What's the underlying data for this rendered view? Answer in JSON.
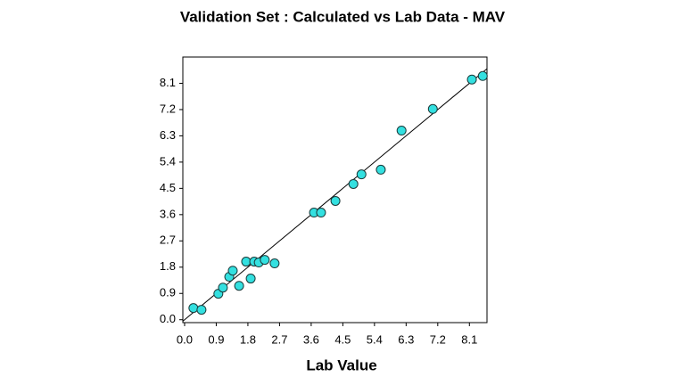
{
  "chart_data": {
    "type": "scatter",
    "title": "Validation Set : Calculated vs Lab Data - MAV",
    "x_label": "Lab Value",
    "title_color": "#1f1f99",
    "x_label_color": "#8b1a1a",
    "color": "#33e0e0",
    "identity_line": true,
    "x": [
      0.25,
      0.48,
      0.96,
      1.09,
      1.27,
      1.37,
      1.55,
      1.75,
      1.88,
      1.98,
      2.11,
      2.28,
      2.56,
      3.68,
      3.88,
      4.29,
      4.8,
      5.03,
      5.58,
      6.17,
      7.06,
      8.17,
      8.48
    ],
    "values": [
      0.4,
      0.34,
      0.89,
      1.1,
      1.47,
      1.68,
      1.16,
      1.99,
      1.41,
      1.99,
      1.96,
      2.05,
      1.93,
      3.67,
      3.67,
      4.07,
      4.65,
      4.98,
      5.14,
      6.48,
      7.22,
      8.23,
      8.35
    ],
    "xlim": [
      -0.05,
      8.6
    ],
    "ylim": [
      -0.1,
      9.0
    ],
    "xticks": [
      {
        "value": 0,
        "label": "0.0"
      },
      0.9,
      1.8,
      2.7,
      3.6,
      4.5,
      5.4,
      6.3,
      7.2,
      8.1
    ],
    "yticks": [
      {
        "value": 0,
        "label": "0.0"
      },
      0.9,
      1.8,
      2.7,
      3.6,
      4.5,
      5.4,
      6.3,
      7.2,
      8.1
    ]
  }
}
